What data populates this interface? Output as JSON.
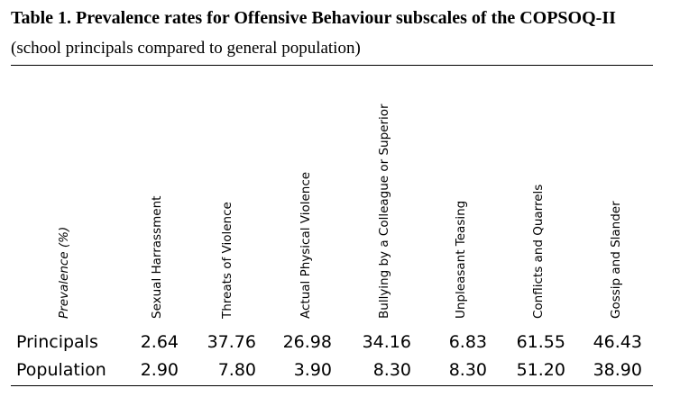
{
  "title": "Table 1. Prevalence rates for Offensive Behaviour subscales of the COPSOQ-II",
  "subtitle": "(school principals compared to general population)",
  "table": {
    "corner_label": "Prevalence (%)",
    "columns": [
      "Sexual Harrassment",
      "Threats of Violence",
      "Actual Physical Violence",
      "Bullying by a Colleague or Superior",
      "Unpleasant Teasing",
      "Conflicts and Quarrels",
      "Gossip and Slander"
    ],
    "rows": [
      {
        "label": "Principals",
        "values": [
          "2.64",
          "37.76",
          "26.98",
          "34.16",
          "6.83",
          "61.55",
          "46.43"
        ]
      },
      {
        "label": "Population",
        "values": [
          "2.90",
          "7.80",
          "3.90",
          "8.30",
          "8.30",
          "51.20",
          "38.90"
        ]
      }
    ]
  }
}
